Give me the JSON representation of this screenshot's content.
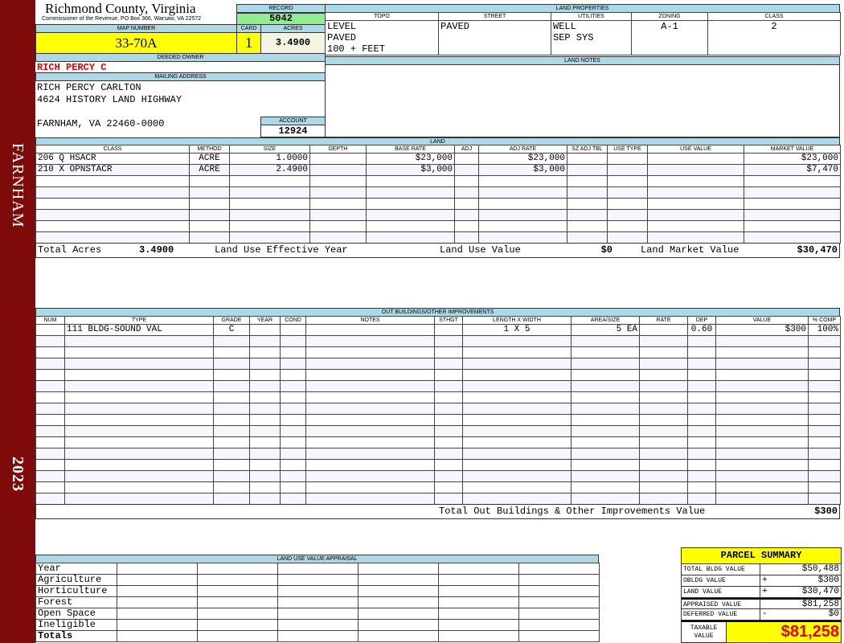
{
  "sidebar": {
    "locality": "FARNHAM",
    "year": "2023"
  },
  "header": {
    "title": "Richmond County, Virginia",
    "subtitle": "Commissioner of the Revenue, PO Box 366, Warsaw, VA 22572",
    "record_label": "RECORD",
    "record": "5042",
    "map_label": "MAP NUMBER",
    "map": "33-70A",
    "card_label": "CARD",
    "card": "1",
    "acres_label": "ACRES",
    "acres": "3.4900",
    "owner_label": "DEEDED OWNER",
    "owner": "RICH PERCY C",
    "mail_label": "MAILING ADDRESS",
    "mail": [
      "RICH PERCY CARLTON",
      "4624 HISTORY LAND HIGHWAY",
      "",
      "FARNHAM, VA 22460-0000"
    ],
    "account_label": "ACCOUNT",
    "account": "12924"
  },
  "land_properties": {
    "title": "LAND PROPERTIES",
    "columns": [
      "TOPO",
      "STREET",
      "UTILITIES",
      "ZONING",
      "CLASS"
    ],
    "rows": [
      [
        "LEVEL",
        "PAVED",
        "WELL",
        "A-1",
        "2"
      ],
      [
        "PAVED",
        "",
        "SEP SYS",
        "",
        ""
      ],
      [
        "100 + FEET",
        "",
        "",
        "",
        ""
      ]
    ]
  },
  "land_notes": {
    "title": "LAND NOTES"
  },
  "land": {
    "title": "LAND",
    "columns": [
      "CLASS",
      "METHOD",
      "SIZE",
      "DEPTH",
      "BASE RATE",
      "ADJ",
      "ADJ RATE",
      "SZ ADJ TBL",
      "USE TYPE",
      "USE VALUE",
      "MARKET VALUE"
    ],
    "rows": [
      [
        "206 Q HSACR",
        "ACRE",
        "1.0000",
        "",
        "$23,000",
        "",
        "$23,000",
        "",
        "",
        "",
        "$23,000"
      ],
      [
        "210 X OPNSTACR",
        "ACRE",
        "2.4900",
        "",
        "$3,000",
        "",
        "$3,000",
        "",
        "",
        "",
        "$7,470"
      ]
    ],
    "totals": {
      "acres_label": "Total Acres",
      "acres": "3.4900",
      "eff_year_label": "Land Use Effective Year",
      "use_value_label": "Land Use Value",
      "use_value": "$0",
      "market_label": "Land Market Value",
      "market": "$30,470"
    }
  },
  "outbuildings": {
    "title": "OUT BUILDINGS/OTHER IMPROVEMENTS",
    "columns": [
      "NUM",
      "TYPE",
      "GRADE",
      "YEAR",
      "COND",
      "NOTES",
      "STHGT",
      "LENGTH X WIDTH",
      "AREA/SIZE",
      "RATE",
      "DEP",
      "VALUE",
      "% COMP"
    ],
    "rows": [
      [
        "",
        "111 BLDG-SOUND VAL",
        "C",
        "",
        "",
        "",
        "",
        "1 X 5",
        "5 EA",
        "",
        "0.60",
        "$300",
        "100%"
      ]
    ],
    "total_label": "Total Out Buildings & Other Improvements Value",
    "total": "$300"
  },
  "land_use": {
    "title": "LAND USE VALUE APPRAISAL",
    "rows": [
      "Year",
      "Agriculture",
      "Horticulture",
      "Forest",
      "Open Space",
      "Ineligible",
      "Totals"
    ]
  },
  "parcel_summary": {
    "title": "PARCEL SUMMARY",
    "rows": [
      {
        "label": "TOTAL BLDG VALUE",
        "sign": "",
        "value": "$50,488"
      },
      {
        "label": "OBLDG VALUE",
        "sign": "+",
        "value": "$300"
      },
      {
        "label": "LAND VALUE",
        "sign": "+",
        "value": "$30,470"
      },
      {
        "label": "APPRAISED VALUE",
        "sign": "",
        "value": "$81,258"
      },
      {
        "label": "DEFERRED VALUE",
        "sign": "-",
        "value": "$0"
      }
    ],
    "taxable_label": "TAXABLE VALUE",
    "taxable": "$81,258"
  },
  "colors": {
    "sidebar": "#7f0a0a",
    "header": "#add8e6",
    "highlight": "#ffff00",
    "record": "#90ee90",
    "owner": "#e00000"
  }
}
